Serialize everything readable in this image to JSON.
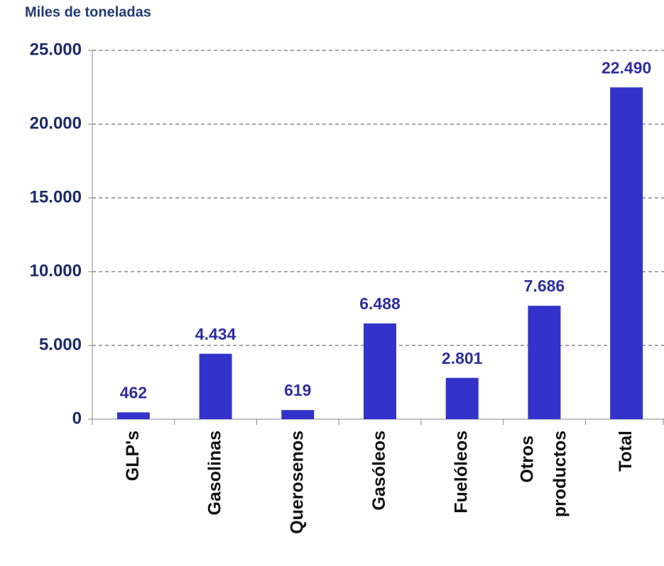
{
  "chart_data": {
    "type": "bar",
    "title": "Miles de toneladas",
    "categories": [
      "GLP's",
      "Gasolinas",
      "Querosenos",
      "Gasóleos",
      "Fuelóleos",
      "Otros productos",
      "Total"
    ],
    "values": [
      462,
      4434,
      619,
      6488,
      2801,
      7686,
      22490
    ],
    "value_labels": [
      "462",
      "4.434",
      "619",
      "6.488",
      "2.801",
      "7.686",
      "22.490"
    ],
    "color": "#3333cc",
    "ylim": [
      0,
      25000
    ],
    "yticks": [
      0,
      {
        "value": 5000,
        "label": "5.000"
      },
      {
        "value": 10000,
        "label": "10.000"
      },
      {
        "value": 15000,
        "label": "15.000"
      },
      {
        "value": 20000,
        "label": "20.000"
      },
      {
        "value": 25000,
        "label": "25.000"
      }
    ],
    "grid": true
  }
}
